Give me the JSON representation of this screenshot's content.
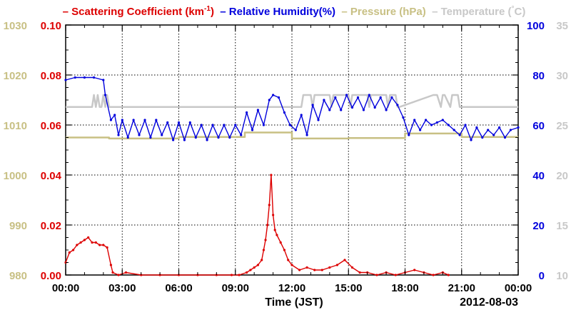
{
  "chart_data": {
    "type": "line",
    "legend": [
      {
        "dash": "–",
        "name": "Scattering Coefficient (km",
        "sup": "-1",
        "close": ")",
        "color": "#dd0000"
      },
      {
        "dash": "–",
        "name": "Relative Humidity(%)",
        "sup": "",
        "close": "",
        "color": "#0000dd"
      },
      {
        "dash": "–",
        "name": "Pressure (hPa)",
        "sup": "",
        "close": "",
        "color": "#c8c084"
      },
      {
        "dash": "–",
        "name": "Temperature (",
        "sup": "°",
        "close": "C)",
        "color": "#c8c8c8"
      }
    ],
    "legend_placement": "top",
    "x_axis": {
      "label": "Time (JST)",
      "date": "2012-08-03",
      "ticks": [
        "00:00",
        "03:00",
        "06:00",
        "09:00",
        "12:00",
        "15:00",
        "18:00",
        "21:00",
        "00:00"
      ],
      "range_hours": [
        0,
        24
      ]
    },
    "axes": {
      "pressure": {
        "side": "left-outer",
        "range": [
          980,
          1030
        ],
        "ticks": [
          "980",
          "990",
          "1000",
          "1010",
          "1020",
          "1030"
        ],
        "color": "#c8c084"
      },
      "scattering": {
        "side": "left-inner",
        "range": [
          0,
          0.1
        ],
        "ticks": [
          "0.00",
          "0.02",
          "0.04",
          "0.06",
          "0.08",
          "0.10"
        ],
        "color": "#dd0000"
      },
      "humidity": {
        "side": "right-inner",
        "range": [
          0,
          100
        ],
        "ticks": [
          "0",
          "20",
          "40",
          "60",
          "80",
          "100"
        ],
        "color": "#0000dd"
      },
      "temperature": {
        "side": "right-outer",
        "range": [
          10,
          35
        ],
        "ticks": [
          "10",
          "15",
          "20",
          "25",
          "30",
          "35"
        ],
        "color": "#c8c8c8"
      }
    },
    "grid": true,
    "series": [
      {
        "name": "Scattering Coefficient",
        "axis": "scattering",
        "color": "#dd0000",
        "x": [
          0,
          0.2,
          0.4,
          0.6,
          0.8,
          1.0,
          1.2,
          1.4,
          1.6,
          1.8,
          2.0,
          2.2,
          2.4,
          2.5,
          2.8,
          3.2,
          4.0,
          5.0,
          6.0,
          7.0,
          8.0,
          8.8,
          9.2,
          9.6,
          9.8,
          10.0,
          10.2,
          10.4,
          10.5,
          10.6,
          10.7,
          10.8,
          10.9,
          11.0,
          11.1,
          11.2,
          11.4,
          11.6,
          11.8,
          12.0,
          12.4,
          12.8,
          13.2,
          13.6,
          14.0,
          14.4,
          14.8,
          15.2,
          15.6,
          16.0,
          16.5,
          17.0,
          17.5,
          18.0,
          18.5,
          19.0,
          19.5,
          20.0,
          20.3
        ],
        "y": [
          0.005,
          0.009,
          0.01,
          0.012,
          0.013,
          0.014,
          0.015,
          0.013,
          0.013,
          0.012,
          0.012,
          0.011,
          0.004,
          0.001,
          0.0,
          0.001,
          0.0,
          0.0,
          0.0,
          0.0,
          0.0,
          0.0,
          0.0,
          0.001,
          0.002,
          0.003,
          0.004,
          0.006,
          0.01,
          0.014,
          0.02,
          0.028,
          0.04,
          0.024,
          0.018,
          0.016,
          0.013,
          0.01,
          0.006,
          0.004,
          0.002,
          0.003,
          0.002,
          0.002,
          0.003,
          0.004,
          0.006,
          0.003,
          0.001,
          0.001,
          0.0,
          0.001,
          0.0,
          0.001,
          0.002,
          0.001,
          0.0,
          0.001,
          0.0
        ]
      },
      {
        "name": "Relative Humidity",
        "axis": "humidity",
        "color": "#0000dd",
        "x": [
          0,
          0.5,
          1.0,
          1.5,
          2.0,
          2.1,
          2.4,
          2.6,
          2.8,
          3.0,
          3.3,
          3.6,
          3.9,
          4.2,
          4.5,
          4.8,
          5.1,
          5.4,
          5.7,
          6.0,
          6.3,
          6.6,
          6.9,
          7.2,
          7.5,
          7.8,
          8.1,
          8.4,
          8.7,
          9.0,
          9.3,
          9.6,
          9.9,
          10.2,
          10.5,
          10.8,
          11.0,
          11.3,
          11.6,
          11.9,
          12.2,
          12.5,
          12.8,
          13.1,
          13.4,
          13.7,
          14.0,
          14.3,
          14.6,
          14.9,
          15.2,
          15.5,
          15.8,
          16.1,
          16.4,
          16.7,
          17.0,
          17.3,
          17.6,
          17.9,
          18.2,
          18.5,
          18.8,
          19.1,
          19.4,
          19.7,
          20.0,
          20.3,
          20.6,
          20.9,
          21.2,
          21.5,
          21.8,
          22.1,
          22.4,
          22.7,
          23.0,
          23.3,
          23.6,
          24.0
        ],
        "y": [
          78,
          79,
          79,
          79,
          78,
          72,
          62,
          64,
          56,
          62,
          55,
          62,
          56,
          62,
          55,
          62,
          56,
          61,
          54,
          61,
          54,
          61,
          55,
          60,
          54,
          60,
          55,
          60,
          55,
          60,
          56,
          65,
          58,
          66,
          60,
          70,
          72,
          71,
          65,
          60,
          58,
          64,
          56,
          68,
          62,
          70,
          66,
          71,
          66,
          72,
          67,
          71,
          66,
          72,
          67,
          71,
          66,
          71,
          68,
          63,
          56,
          62,
          58,
          62,
          60,
          61,
          62,
          60,
          58,
          56,
          60,
          54,
          59,
          55,
          58,
          56,
          59,
          55,
          58,
          59
        ]
      },
      {
        "name": "Pressure",
        "axis": "pressure",
        "color": "#c8c084",
        "x": [
          0,
          2.3,
          2.3,
          6.0,
          6.0,
          9.5,
          9.5,
          12.0,
          12.0,
          15.0,
          15.0,
          18.0,
          18.0,
          21.0,
          21.0,
          24.0
        ],
        "y": [
          1007.5,
          1007.5,
          1007.3,
          1007.3,
          1007.6,
          1007.6,
          1008.5,
          1008.5,
          1007.3,
          1007.3,
          1007.4,
          1007.4,
          1008.3,
          1008.3,
          1007.6,
          1007.6
        ]
      },
      {
        "name": "Temperature",
        "axis": "temperature",
        "color": "#c8c8c8",
        "x": [
          0,
          1.4,
          1.5,
          1.6,
          1.7,
          1.8,
          1.9,
          2.0,
          2.1,
          2.2,
          2.3,
          12.5,
          12.6,
          12.7,
          13.0,
          13.1,
          13.2,
          14.0,
          14.1,
          14.2,
          15.0,
          15.1,
          15.2,
          16.0,
          16.1,
          16.2,
          17.0,
          17.1,
          17.2,
          17.5,
          17.6,
          17.7,
          19.5,
          19.6,
          19.7,
          19.9,
          20.0,
          20.1,
          20.4,
          20.5,
          20.6,
          20.8,
          20.9,
          21.0,
          24.0
        ],
        "y": [
          26.8,
          26.8,
          28.0,
          26.8,
          28.0,
          26.8,
          26.8,
          28.0,
          26.8,
          28.0,
          26.8,
          26.8,
          28.0,
          28.0,
          28.0,
          26.8,
          28.0,
          28.0,
          26.8,
          28.0,
          28.0,
          26.8,
          28.0,
          28.0,
          26.8,
          28.0,
          28.0,
          26.8,
          28.0,
          28.0,
          26.8,
          26.8,
          28.0,
          28.0,
          28.0,
          26.8,
          28.0,
          28.0,
          26.8,
          28.0,
          28.0,
          28.0,
          26.8,
          26.8,
          26.8
        ]
      }
    ]
  }
}
